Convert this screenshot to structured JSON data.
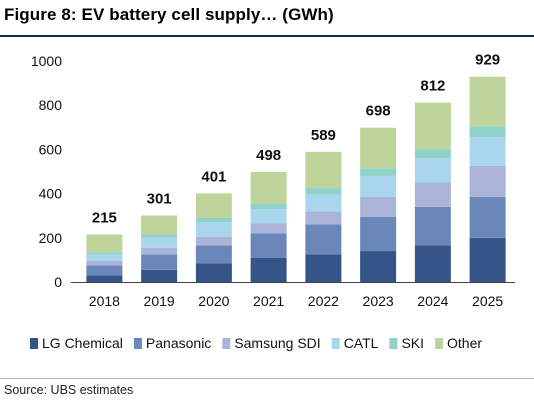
{
  "header": {
    "title": "Figure 8: EV battery cell supply… (GWh)"
  },
  "footer": {
    "source": "Source:  UBS estimates"
  },
  "chart_data": {
    "type": "bar",
    "stacked": true,
    "categories": [
      "2018",
      "2019",
      "2020",
      "2021",
      "2022",
      "2023",
      "2024",
      "2025"
    ],
    "totals": [
      215,
      301,
      401,
      498,
      589,
      698,
      812,
      929
    ],
    "ylim": [
      0,
      1000
    ],
    "yticks": [
      0,
      200,
      400,
      600,
      800,
      1000
    ],
    "grid": false,
    "legend_position": "bottom",
    "series": [
      {
        "name": "LG Chemical",
        "color": "#34548a",
        "values": [
          30,
          55,
          85,
          110,
          125,
          140,
          165,
          200
        ]
      },
      {
        "name": "Panasonic",
        "color": "#6b87ba",
        "values": [
          45,
          70,
          80,
          110,
          135,
          155,
          175,
          185
        ]
      },
      {
        "name": "Samsung SDI",
        "color": "#aab4d8",
        "values": [
          20,
          30,
          40,
          45,
          60,
          90,
          110,
          140
        ]
      },
      {
        "name": "CATL",
        "color": "#a9d6ec",
        "values": [
          30,
          45,
          65,
          65,
          75,
          95,
          110,
          130
        ]
      },
      {
        "name": "SKI",
        "color": "#8fd2ca",
        "values": [
          10,
          15,
          20,
          25,
          30,
          35,
          40,
          50
        ]
      },
      {
        "name": "Other",
        "color": "#bfd49a",
        "values": [
          80,
          86,
          111,
          143,
          164,
          183,
          212,
          224
        ]
      }
    ]
  }
}
